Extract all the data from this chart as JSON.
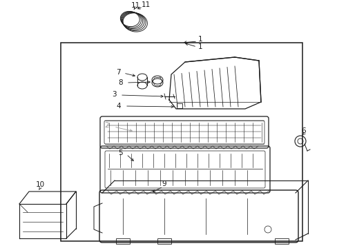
{
  "bg_color": "#ffffff",
  "line_color": "#1a1a1a",
  "gray_color": "#999999",
  "fig_width": 4.89,
  "fig_height": 3.6,
  "dpi": 100
}
